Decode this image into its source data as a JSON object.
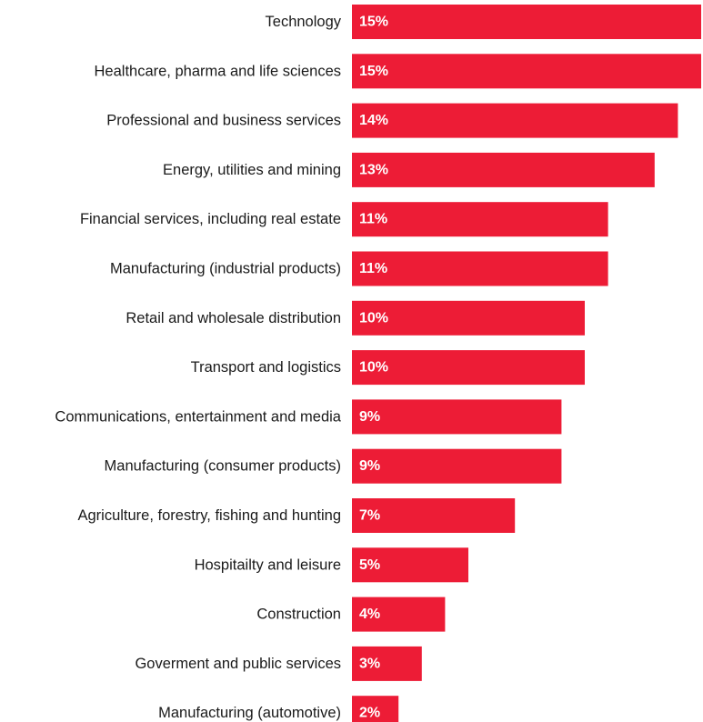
{
  "chart_data": {
    "type": "bar",
    "orientation": "horizontal",
    "title": "",
    "xlabel": "",
    "ylabel": "",
    "grid": false,
    "legend": "none",
    "value_format": "percent",
    "xlim": [
      0,
      15
    ],
    "bar_color": "#ed1c36",
    "value_label_color": "#ffffff",
    "categories": [
      "Technology",
      "Healthcare, pharma and life sciences",
      "Professional and business services",
      "Energy, utilities and mining",
      "Financial services, including real estate",
      "Manufacturing (industrial products)",
      "Retail and wholesale distribution",
      "Transport and logistics",
      "Communications, entertainment and media",
      "Manufacturing (consumer products)",
      "Agriculture, forestry, fishing and hunting",
      "Hospitailty and leisure",
      "Construction",
      "Goverment and public services",
      "Manufacturing (automotive)"
    ],
    "values": [
      15,
      15,
      14,
      13,
      11,
      11,
      10,
      10,
      9,
      9,
      7,
      5,
      4,
      3,
      2
    ],
    "value_labels": [
      "15%",
      "15%",
      "14%",
      "13%",
      "11%",
      "11%",
      "10%",
      "10%",
      "9%",
      "9%",
      "7%",
      "5%",
      "4%",
      "3%",
      "2%"
    ]
  }
}
